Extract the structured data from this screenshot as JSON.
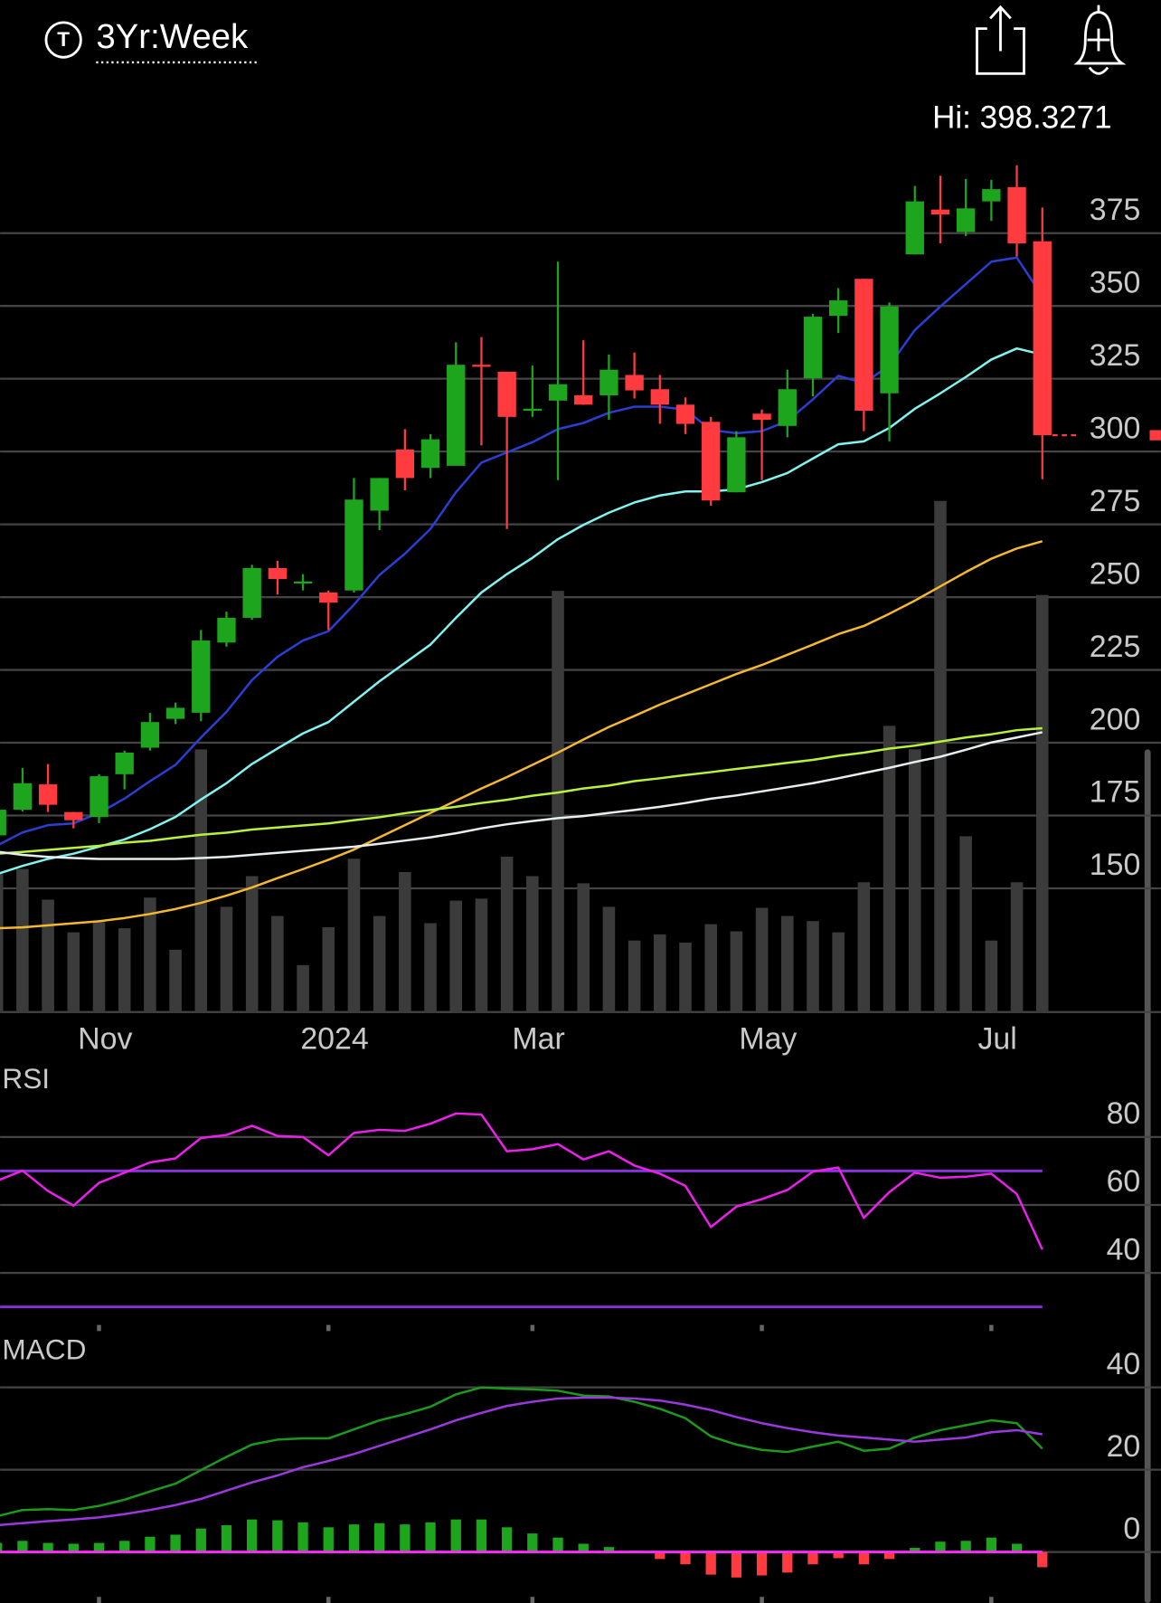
{
  "header": {
    "icon_letter": "T",
    "period": "3Yr:Week"
  },
  "chart_data": [
    {
      "type": "candlestick",
      "annotation": "Hi: 398.3271",
      "categories": [
        null,
        null,
        null,
        null,
        "Nov",
        null,
        null,
        null,
        null,
        null,
        null,
        null,
        null,
        "2024",
        null,
        null,
        null,
        null,
        null,
        null,
        null,
        "Mar",
        null,
        null,
        null,
        null,
        null,
        null,
        null,
        null,
        "May",
        null,
        null,
        null,
        null,
        null,
        null,
        null,
        null,
        "Jul",
        null,
        null
      ],
      "open": [
        168.2,
        177.0,
        185.7,
        176.2,
        174.5,
        189.2,
        198.3,
        208.2,
        210.3,
        234.4,
        242.9,
        260.0,
        254.9,
        251.6,
        252.3,
        279.7,
        300.7,
        294.4,
        295.1,
        329.8,
        327.4,
        314.3,
        317.5,
        319.3,
        319.3,
        326.3,
        321.4,
        316.1,
        310.2,
        286.0,
        313.0,
        308.8,
        325.2,
        346.6,
        359.3,
        320.0,
        367.7,
        383.1,
        375.4,
        385.9,
        390.8,
        372.2
      ],
      "high": [
        177.0,
        191.3,
        192.7,
        176.2,
        189.2,
        197.3,
        210.3,
        213.8,
        238.7,
        245.0,
        261.1,
        262.5,
        257.9,
        252.3,
        290.9,
        290.9,
        307.7,
        306.0,
        337.5,
        339.3,
        327.4,
        329.5,
        365.2,
        338.2,
        333.3,
        334.0,
        326.3,
        318.6,
        311.9,
        307.0,
        314.4,
        328.1,
        347.3,
        356.1,
        359.3,
        351.2,
        391.2,
        394.7,
        393.6,
        393.3,
        398.3,
        383.8
      ],
      "low": [
        167.4,
        176.4,
        176.2,
        170.6,
        172.4,
        184.0,
        197.3,
        206.4,
        207.4,
        233.0,
        242.2,
        250.9,
        252.3,
        238.7,
        251.6,
        273.0,
        286.7,
        290.9,
        295.1,
        302.1,
        273.4,
        311.9,
        290.2,
        316.1,
        310.9,
        318.2,
        309.5,
        306.0,
        281.4,
        286.0,
        290.2,
        304.9,
        318.9,
        340.7,
        307.0,
        303.5,
        367.7,
        371.5,
        374.0,
        379.2,
        367.0,
        290.5
      ],
      "close": [
        177.0,
        186.1,
        178.7,
        173.4,
        188.5,
        196.6,
        207.1,
        212.0,
        235.1,
        242.9,
        260.0,
        256.2,
        255.4,
        248.1,
        283.5,
        290.9,
        290.9,
        304.2,
        329.8,
        329.5,
        311.9,
        314.7,
        323.1,
        316.1,
        328.1,
        321.0,
        316.1,
        309.5,
        283.2,
        304.9,
        310.9,
        321.4,
        346.3,
        351.9,
        314.0,
        349.8,
        385.9,
        381.4,
        383.5,
        390.1,
        371.5,
        305.6
      ],
      "up_color": "#1ea51e",
      "down_color": "#ff3b3f",
      "current_price_color": "#ff3b3f",
      "volume": {
        "color": "#3b3b3b",
        "ylim": [
          0,
          840
        ],
        "values": [
          135,
          140,
          110,
          78,
          88,
          82,
          112,
          61,
          257,
          103,
          133,
          94,
          46,
          83,
          150,
          94,
          137,
          87,
          109,
          111,
          152,
          133,
          412,
          126,
          103,
          70,
          76,
          68,
          86,
          79,
          102,
          94,
          89,
          78,
          127,
          280,
          257,
          500,
          172,
          70,
          127,
          408
        ]
      },
      "moving_averages": [
        {
          "color": "#2a3fd6",
          "values": [
            164.7,
            169.2,
            171.7,
            172.3,
            175.9,
            180.8,
            186.8,
            192.4,
            201.8,
            210.6,
            221.5,
            229.5,
            235.1,
            238.3,
            247.4,
            257.6,
            264.9,
            273.4,
            286.0,
            296.2,
            299.7,
            303.2,
            307.7,
            309.8,
            313.3,
            315.4,
            315.4,
            314.4,
            307.4,
            306.3,
            307.0,
            310.5,
            317.9,
            326.0,
            323.5,
            329.5,
            341.7,
            349.8,
            357.5,
            365.2,
            366.6,
            353.3
          ]
        },
        {
          "color": "#80f4ef",
          "values": [
            154.9,
            157.7,
            160.1,
            161.9,
            164.3,
            166.8,
            170.3,
            174.5,
            180.5,
            186.1,
            192.7,
            198.0,
            203.2,
            207.1,
            214.1,
            221.1,
            227.4,
            233.7,
            242.9,
            251.6,
            257.9,
            263.5,
            269.9,
            274.8,
            279.0,
            282.5,
            284.9,
            286.3,
            286.3,
            287.0,
            289.5,
            292.6,
            297.6,
            302.5,
            303.5,
            308.1,
            314.7,
            320.0,
            325.6,
            331.6,
            335.4,
            333.3
          ]
        },
        {
          "color": "#f5b82e",
          "values": [
            136.3,
            136.6,
            137.3,
            138.0,
            138.7,
            139.8,
            141.2,
            142.9,
            145.0,
            147.5,
            150.3,
            153.5,
            156.6,
            159.8,
            163.3,
            167.5,
            171.7,
            175.9,
            180.1,
            184.3,
            188.2,
            192.4,
            196.6,
            201.1,
            205.4,
            209.2,
            213.1,
            216.6,
            220.1,
            223.6,
            226.7,
            230.2,
            233.7,
            237.3,
            240.1,
            244.3,
            248.8,
            253.7,
            258.6,
            263.2,
            266.7,
            269.2
          ]
        },
        {
          "color": "#b8f23c",
          "values": [
            161.9,
            162.5,
            163.2,
            163.9,
            164.6,
            165.7,
            166.3,
            167.4,
            168.4,
            169.1,
            170.2,
            170.9,
            171.6,
            172.3,
            173.4,
            174.4,
            175.8,
            176.9,
            178.0,
            179.3,
            180.4,
            181.8,
            182.9,
            184.3,
            185.3,
            186.8,
            187.8,
            188.9,
            189.9,
            191.0,
            192.0,
            193.1,
            194.1,
            195.5,
            196.6,
            198.0,
            199.0,
            200.4,
            201.8,
            202.9,
            204.3,
            205.0
          ]
        },
        {
          "color": "#e6eef0",
          "values": [
            162.6,
            161.5,
            160.8,
            160.4,
            160.1,
            160.1,
            160.1,
            160.1,
            160.4,
            160.8,
            161.5,
            162.2,
            162.9,
            163.6,
            164.3,
            165.3,
            166.4,
            167.5,
            168.9,
            170.6,
            172.0,
            173.1,
            174.1,
            174.8,
            175.9,
            176.9,
            178.0,
            179.3,
            180.8,
            181.9,
            183.3,
            184.7,
            186.1,
            187.8,
            189.6,
            191.4,
            193.4,
            195.2,
            197.6,
            200.1,
            201.8,
            203.6
          ]
        }
      ],
      "ylim": [
        107.5,
        402.4
      ],
      "yticks": [
        150,
        175,
        200,
        225,
        250,
        275,
        300,
        325,
        350,
        375
      ],
      "grid": true
    },
    {
      "type": "line",
      "title": "RSI",
      "series": [
        {
          "color": "#ec1fec",
          "values": [
            67.1,
            70.1,
            64.1,
            59.8,
            66.5,
            69.5,
            72.5,
            73.7,
            79.7,
            80.6,
            83.3,
            80.3,
            80.0,
            74.6,
            81.2,
            82.1,
            81.8,
            83.9,
            86.9,
            86.6,
            75.8,
            76.4,
            77.9,
            73.4,
            75.8,
            71.6,
            69.2,
            65.6,
            53.5,
            59.5,
            61.7,
            64.4,
            69.8,
            71.0,
            56.2,
            63.8,
            69.5,
            68.0,
            68.3,
            69.2,
            63.2,
            46.9
          ]
        }
      ],
      "reference_lines": [
        {
          "value": 70,
          "color": "#8b2fe0"
        },
        {
          "value": 30,
          "color": "#8b2fe0"
        }
      ],
      "ylim": [
        24.1,
        101.7
      ],
      "yticks": [
        80,
        60,
        40
      ],
      "grid": true
    },
    {
      "type": "macd",
      "title": "MACD",
      "series": [
        {
          "color": "#1c9a1c",
          "values": [
            8.7,
            10.2,
            10.4,
            10.2,
            11.2,
            12.7,
            14.7,
            16.6,
            19.9,
            23.1,
            26.1,
            27.3,
            27.6,
            27.6,
            29.8,
            32.0,
            33.5,
            35.3,
            38.3,
            40.0,
            39.7,
            39.5,
            39.2,
            38.0,
            37.8,
            36.5,
            34.8,
            32.5,
            28.1,
            26.1,
            24.8,
            24.3,
            25.6,
            26.8,
            24.6,
            25.1,
            27.8,
            29.6,
            30.8,
            32.0,
            31.3,
            25.1
          ]
        },
        {
          "color": "#9b38e0",
          "values": [
            6.5,
            7.0,
            7.5,
            7.9,
            8.4,
            9.2,
            10.2,
            11.4,
            12.9,
            14.9,
            16.9,
            18.6,
            20.6,
            22.1,
            23.8,
            25.8,
            27.8,
            29.8,
            32.0,
            33.8,
            35.5,
            36.5,
            37.3,
            37.5,
            37.5,
            37.3,
            36.8,
            35.8,
            34.5,
            32.8,
            31.3,
            30.1,
            29.1,
            28.3,
            27.8,
            27.3,
            26.8,
            27.3,
            27.8,
            29.1,
            29.6,
            28.6
          ]
        }
      ],
      "histogram": {
        "up_color": "#1ea51e",
        "down_color": "#ff3b3f",
        "values": [
          2.2,
          2.7,
          2.2,
          2.0,
          2.2,
          2.7,
          3.7,
          4.2,
          5.7,
          6.5,
          7.9,
          7.7,
          7.2,
          6.0,
          6.7,
          7.0,
          6.7,
          7.2,
          7.9,
          7.9,
          6.0,
          4.5,
          3.5,
          2.0,
          1.2,
          0.3,
          -1.7,
          -3.0,
          -5.5,
          -6.2,
          -5.7,
          -5.0,
          -3.0,
          -1.5,
          -3.0,
          -1.7,
          1.0,
          2.5,
          2.7,
          3.5,
          2.0,
          -3.7
        ]
      },
      "zero_line_color": "#ff2aff",
      "ylim": [
        -12.4,
        51.7
      ],
      "yticks": [
        40,
        20,
        0
      ],
      "grid": true
    }
  ]
}
